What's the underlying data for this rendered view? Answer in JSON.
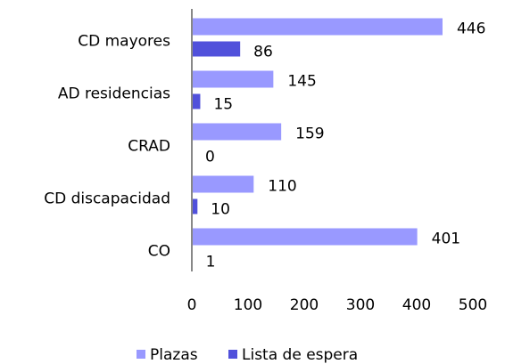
{
  "chart_data": {
    "type": "bar",
    "orientation": "horizontal",
    "categories": [
      "CD mayores",
      "AD residencias",
      "CRAD",
      "CD discapacidad",
      "CO"
    ],
    "series": [
      {
        "name": "Plazas",
        "color": "#9999ff",
        "values": [
          446,
          145,
          159,
          110,
          401
        ]
      },
      {
        "name": "Lista de espera",
        "color": "#5151db",
        "values": [
          86,
          15,
          0,
          10,
          1
        ]
      }
    ],
    "xlim": [
      0,
      500
    ],
    "xticks": [
      0,
      100,
      200,
      300,
      400,
      500
    ],
    "legend": "bottom"
  }
}
